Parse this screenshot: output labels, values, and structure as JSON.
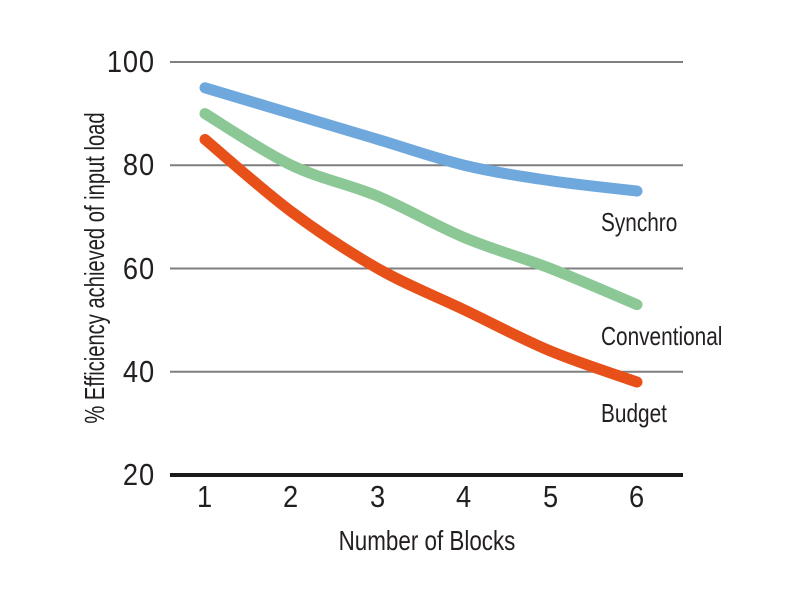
{
  "chart_data": {
    "type": "line",
    "title": "",
    "xlabel": "Number of Blocks",
    "ylabel": "% Efficiency achieved of input load",
    "x": [
      1,
      2,
      3,
      4,
      5,
      6
    ],
    "series": [
      {
        "name": "Synchro",
        "color": "#6fa8dc",
        "values": [
          95,
          90,
          85,
          80,
          77,
          75
        ]
      },
      {
        "name": "Conventional",
        "color": "#8cc896",
        "values": [
          90,
          80,
          74,
          66,
          60,
          53
        ]
      },
      {
        "name": "Budget",
        "color": "#e8501a",
        "values": [
          85,
          71,
          60,
          52,
          44,
          38
        ]
      }
    ],
    "yticks": [
      100,
      80,
      60,
      40,
      20
    ],
    "ylim": [
      20,
      100
    ],
    "grid": "horizontal-gray-lines",
    "legend_position": "inline-labels-right-of-line-ends",
    "colors": {
      "background": "#ffffff",
      "gridline": "#7f7f7f",
      "axis_line": "#1a1a1a",
      "text": "#231f20"
    }
  }
}
